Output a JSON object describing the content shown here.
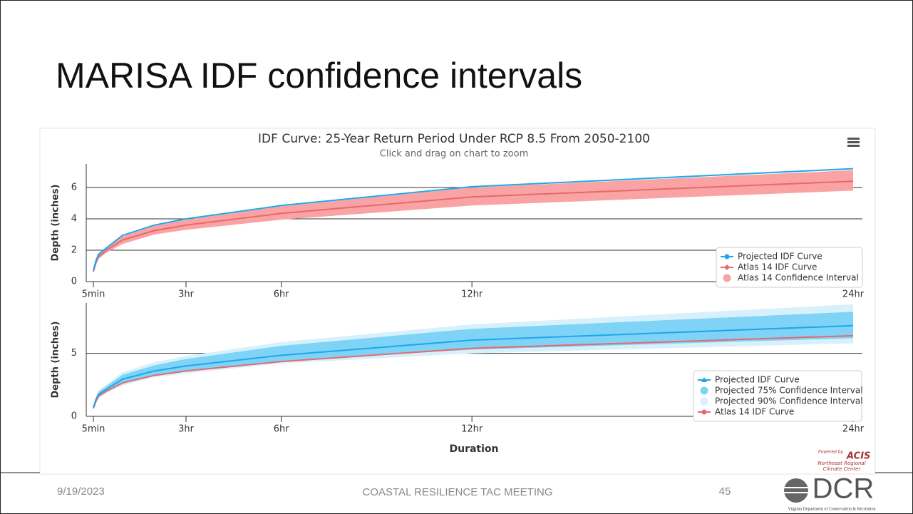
{
  "slide_title": "MARISA IDF confidence intervals",
  "footer": {
    "date": "9/19/2023",
    "center": "COASTAL RESILIENCE TAC MEETING",
    "page": "45"
  },
  "logo": {
    "name": "DCR",
    "caption": "Virginia Department of Conservation & Recreation"
  },
  "credit": {
    "powered": "Powered by",
    "name": "ACIS",
    "line1": "Northeast Regional",
    "line2": "Climate Center"
  },
  "chart_data": [
    {
      "type": "line",
      "title": "IDF Curve: 25-Year Return Period Under RCP 8.5 From 2050-2100",
      "subtitle": "Click and drag on chart to zoom",
      "y_label": "Depth (inches)",
      "x": [
        5,
        10,
        15,
        30,
        60,
        120,
        180,
        360,
        720,
        1440
      ],
      "xlim": [
        5,
        1440
      ],
      "xticks": [
        {
          "value": 5,
          "label": "5min"
        },
        {
          "value": 180,
          "label": "3hr"
        },
        {
          "value": 360,
          "label": "6hr"
        },
        {
          "value": 720,
          "label": "12hr"
        },
        {
          "value": 1440,
          "label": "24hr"
        }
      ],
      "ylim": [
        0,
        7.5
      ],
      "yticks": [
        0,
        2,
        4,
        6
      ],
      "grid": true,
      "series": [
        {
          "name": "Projected IDF Curve",
          "color": "#1ea7e8",
          "marker": "circle",
          "values": [
            0.7,
            1.35,
            1.75,
            2.15,
            2.95,
            3.6,
            4.0,
            4.85,
            6.05,
            7.2
          ]
        },
        {
          "name": "Atlas 14 IDF Curve",
          "color": "#e8686b",
          "marker": "diamond",
          "values": [
            0.63,
            1.2,
            1.6,
            2.0,
            2.65,
            3.25,
            3.6,
            4.35,
            5.4,
            6.4
          ]
        },
        {
          "name": "Atlas 14 Confidence Interval",
          "color": "#f9a3a4",
          "low": [
            0.58,
            1.1,
            1.45,
            1.85,
            2.4,
            3.0,
            3.3,
            3.95,
            4.85,
            5.8
          ],
          "high": [
            0.7,
            1.35,
            1.75,
            2.15,
            2.9,
            3.55,
            3.95,
            4.8,
            6.0,
            7.1
          ]
        }
      ]
    },
    {
      "type": "line",
      "y_label": "Depth (inches)",
      "x_label": "Duration",
      "x": [
        5,
        10,
        15,
        30,
        60,
        120,
        180,
        360,
        720,
        1440
      ],
      "xlim": [
        5,
        1440
      ],
      "xticks": [
        {
          "value": 5,
          "label": "5min"
        },
        {
          "value": 180,
          "label": "3hr"
        },
        {
          "value": 360,
          "label": "6hr"
        },
        {
          "value": 720,
          "label": "12hr"
        },
        {
          "value": 1440,
          "label": "24hr"
        }
      ],
      "ylim": [
        0,
        9
      ],
      "yticks": [
        0,
        5
      ],
      "grid": true,
      "series": [
        {
          "name": "Projected IDF Curve",
          "color": "#1ea7e8",
          "marker": "triangle",
          "values": [
            0.7,
            1.35,
            1.75,
            2.15,
            2.95,
            3.6,
            4.0,
            4.85,
            6.05,
            7.2
          ]
        },
        {
          "name": "Projected 75% Confidence Interval",
          "color": "#7fd3f7",
          "low": [
            0.62,
            1.2,
            1.55,
            1.95,
            2.6,
            3.3,
            3.6,
            4.4,
            5.3,
            6.2
          ],
          "high": [
            0.75,
            1.5,
            1.95,
            2.4,
            3.3,
            4.05,
            4.55,
            5.6,
            6.95,
            8.3
          ]
        },
        {
          "name": "Projected 90% Confidence Interval",
          "color": "#d7f1fc",
          "low": [
            0.6,
            1.15,
            1.45,
            1.85,
            2.45,
            3.1,
            3.4,
            4.2,
            5.0,
            5.8
          ],
          "high": [
            0.8,
            1.6,
            2.05,
            2.55,
            3.5,
            4.3,
            4.8,
            5.9,
            7.3,
            8.9
          ]
        },
        {
          "name": "Atlas 14 IDF Curve",
          "color": "#e8686b",
          "marker": "circle",
          "values": [
            0.63,
            1.2,
            1.6,
            2.0,
            2.65,
            3.25,
            3.6,
            4.35,
            5.4,
            6.4
          ]
        }
      ]
    }
  ]
}
